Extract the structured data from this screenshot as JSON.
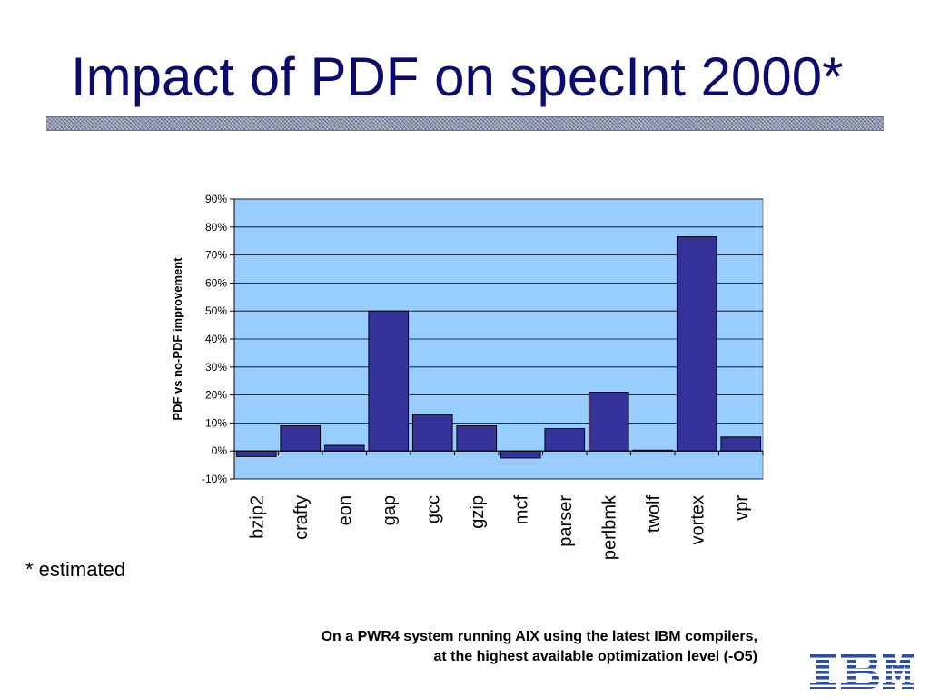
{
  "slide": {
    "title": "Impact of PDF on specInt 2000*",
    "footnote": "* estimated",
    "system_note": [
      "On a PWR4 system running AIX using the latest IBM compilers,",
      "at the highest available optimization level (-O5)"
    ],
    "logo_icon": "ibm-logo-icon"
  },
  "colors": {
    "title": "#0b0b6e",
    "plot_background": "#99ccff",
    "bar_fill": "#333399",
    "logo": "#2f4f9c"
  },
  "chart_data": {
    "type": "bar",
    "title": "",
    "xlabel": "",
    "ylabel": "PDF vs no-PDF improvement",
    "categories": [
      "bzip2",
      "crafty",
      "eon",
      "gap",
      "gcc",
      "gzip",
      "mcf",
      "parser",
      "perlbmk",
      "twolf",
      "vortex",
      "vpr"
    ],
    "values": [
      -2,
      9,
      2,
      50,
      13,
      9,
      -2.5,
      8,
      21,
      0.3,
      76.5,
      5
    ],
    "yticks": [
      "-10%",
      "0%",
      "10%",
      "20%",
      "30%",
      "40%",
      "50%",
      "60%",
      "70%",
      "80%",
      "90%"
    ],
    "ylim": [
      -10,
      90
    ],
    "y_unit": "%",
    "grid": true,
    "legend": "none"
  }
}
